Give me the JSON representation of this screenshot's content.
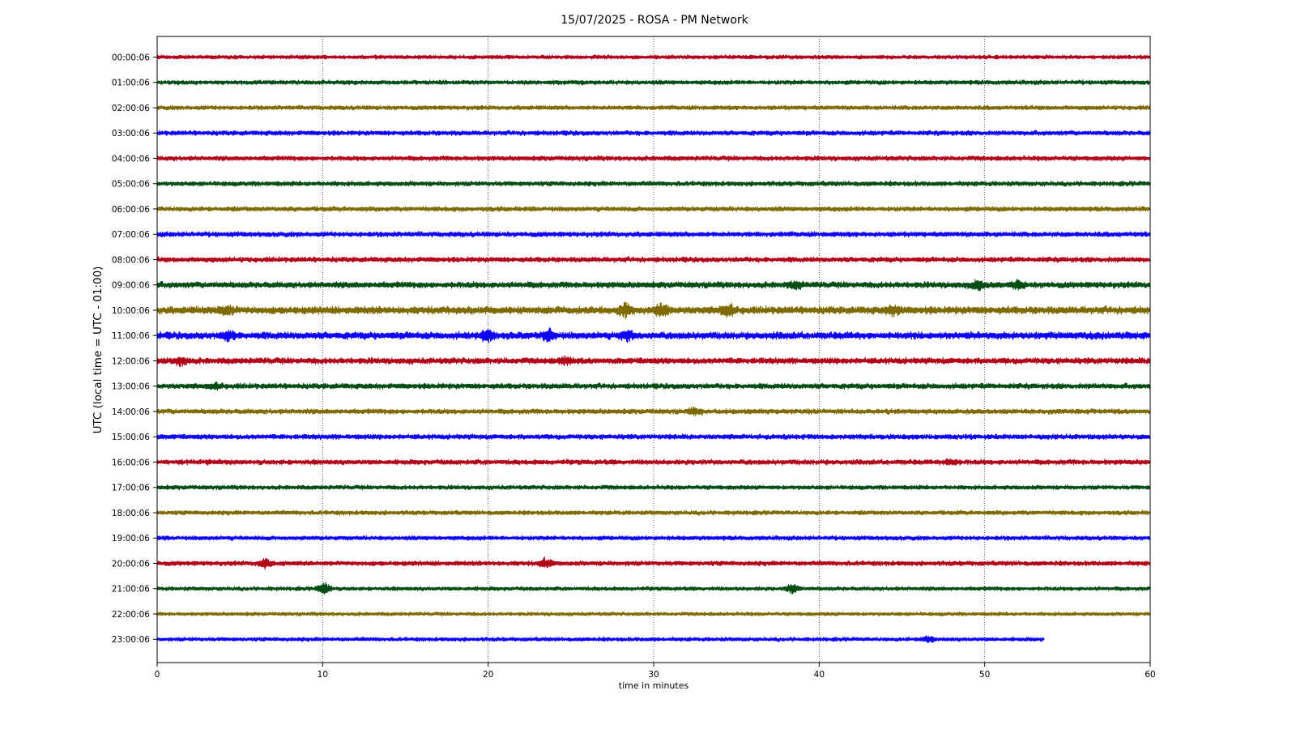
{
  "chart_data": {
    "type": "line",
    "title": "15/07/2025 - ROSA - PM Network",
    "xlabel": "time in minutes",
    "ylabel": "UTC (local time = UTC - 01:00)",
    "xlim": [
      0,
      60
    ],
    "x_ticks": [
      "0",
      "10",
      "20",
      "30",
      "40",
      "50",
      "60"
    ],
    "grid": "vertical dotted",
    "color_cycle": [
      "#b30019",
      "#004d14",
      "#7f6a00",
      "#0d00ff"
    ],
    "series": [
      {
        "label": "00:00:06",
        "x_end": 60,
        "amplitude": 2.2,
        "events": []
      },
      {
        "label": "01:00:06",
        "x_end": 60,
        "amplitude": 2.4,
        "events": []
      },
      {
        "label": "02:00:06",
        "x_end": 60,
        "amplitude": 2.4,
        "events": []
      },
      {
        "label": "03:00:06",
        "x_end": 60,
        "amplitude": 2.6,
        "events": []
      },
      {
        "label": "04:00:06",
        "x_end": 60,
        "amplitude": 2.6,
        "events": []
      },
      {
        "label": "05:00:06",
        "x_end": 60,
        "amplitude": 2.6,
        "events": []
      },
      {
        "label": "06:00:06",
        "x_end": 60,
        "amplitude": 2.6,
        "events": []
      },
      {
        "label": "07:00:06",
        "x_end": 60,
        "amplitude": 2.8,
        "events": []
      },
      {
        "label": "08:00:06",
        "x_end": 60,
        "amplitude": 2.8,
        "events": []
      },
      {
        "label": "09:00:06",
        "x_end": 60,
        "amplitude": 3.4,
        "events": [
          {
            "t": 38.6,
            "a": 4
          },
          {
            "t": 49.6,
            "a": 6
          },
          {
            "t": 52.0,
            "a": 5
          }
        ]
      },
      {
        "label": "10:00:06",
        "x_end": 60,
        "amplitude": 4.2,
        "events": [
          {
            "t": 4.2,
            "a": 6
          },
          {
            "t": 28.3,
            "a": 8
          },
          {
            "t": 30.5,
            "a": 8
          },
          {
            "t": 34.5,
            "a": 9
          },
          {
            "t": 44.5,
            "a": 6
          }
        ]
      },
      {
        "label": "11:00:06",
        "x_end": 60,
        "amplitude": 4.0,
        "events": [
          {
            "t": 4.3,
            "a": 6
          },
          {
            "t": 20.0,
            "a": 8
          },
          {
            "t": 23.7,
            "a": 7
          },
          {
            "t": 28.4,
            "a": 6
          }
        ]
      },
      {
        "label": "12:00:06",
        "x_end": 60,
        "amplitude": 3.4,
        "events": [
          {
            "t": 1.5,
            "a": 5
          },
          {
            "t": 24.7,
            "a": 5
          }
        ]
      },
      {
        "label": "13:00:06",
        "x_end": 60,
        "amplitude": 3.0,
        "events": [
          {
            "t": 3.5,
            "a": 4
          }
        ]
      },
      {
        "label": "14:00:06",
        "x_end": 60,
        "amplitude": 2.8,
        "events": [
          {
            "t": 32.5,
            "a": 4
          }
        ]
      },
      {
        "label": "15:00:06",
        "x_end": 60,
        "amplitude": 2.8,
        "events": []
      },
      {
        "label": "16:00:06",
        "x_end": 60,
        "amplitude": 2.8,
        "events": [
          {
            "t": 48.0,
            "a": 4
          }
        ]
      },
      {
        "label": "17:00:06",
        "x_end": 60,
        "amplitude": 2.4,
        "events": []
      },
      {
        "label": "18:00:06",
        "x_end": 60,
        "amplitude": 2.4,
        "events": []
      },
      {
        "label": "19:00:06",
        "x_end": 60,
        "amplitude": 2.4,
        "events": []
      },
      {
        "label": "20:00:06",
        "x_end": 60,
        "amplitude": 2.6,
        "events": [
          {
            "t": 6.5,
            "a": 6
          },
          {
            "t": 23.5,
            "a": 6
          }
        ]
      },
      {
        "label": "21:00:06",
        "x_end": 60,
        "amplitude": 2.2,
        "events": [
          {
            "t": 10.1,
            "a": 8
          },
          {
            "t": 38.4,
            "a": 7
          }
        ]
      },
      {
        "label": "22:00:06",
        "x_end": 60,
        "amplitude": 2.0,
        "events": []
      },
      {
        "label": "23:00:06",
        "x_end": 53.6,
        "amplitude": 2.2,
        "events": [
          {
            "t": 46.5,
            "a": 4
          }
        ]
      }
    ]
  }
}
